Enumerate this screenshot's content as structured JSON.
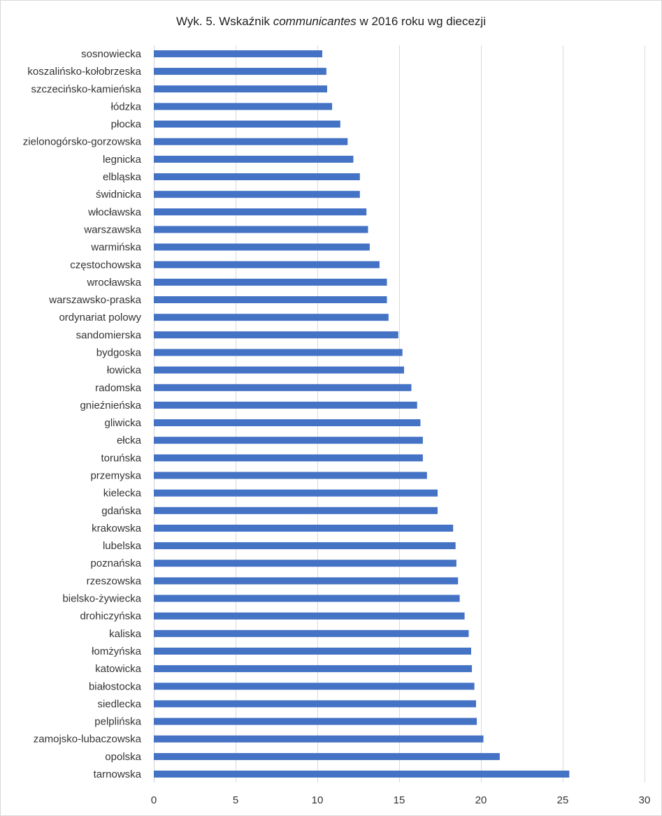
{
  "chart_data": {
    "type": "bar",
    "orientation": "horizontal",
    "title": {
      "prefix": "Wyk. 5. Wskaźnik ",
      "emphasis": "communicantes",
      "suffix": " w 2016 roku wg diecezji"
    },
    "xlabel": "",
    "ylabel": "",
    "xlim": [
      0,
      30
    ],
    "xticks": [
      0,
      5,
      10,
      15,
      20,
      25,
      30
    ],
    "grid": "vertical",
    "legend": "none",
    "bar_color": "#4472c4",
    "categories": [
      "sosnowiecka",
      "koszalińsko-kołobrzeska",
      "szczecińsko-kamieńska",
      "łódzka",
      "płocka",
      "zielonogórsko-gorzowska",
      "legnicka",
      "elbląska",
      "świdnicka",
      "włocławska",
      "warszawska",
      "warmińska",
      "częstochowska",
      "wrocławska",
      "warszawsko-praska",
      "ordynariat polowy",
      "sandomierska",
      "bydgoska",
      "łowicka",
      "radomska",
      "gnieźnieńska",
      "gliwicka",
      "ełcka",
      "toruńska",
      "przemyska",
      "kielecka",
      "gdańska",
      "krakowska",
      "lubelska",
      "poznańska",
      "rzeszowska",
      "bielsko-żywiecka",
      "drohiczyńska",
      "kaliska",
      "łomżyńska",
      "katowicka",
      "białostocka",
      "siedlecka",
      "pelplińska",
      "zamojsko-lubaczowska",
      "opolska",
      "tarnowska"
    ],
    "values": [
      10.3,
      10.55,
      10.6,
      10.9,
      11.4,
      11.85,
      12.2,
      12.6,
      12.6,
      13.0,
      13.1,
      13.2,
      13.8,
      14.25,
      14.25,
      14.35,
      14.95,
      15.2,
      15.3,
      15.75,
      16.1,
      16.3,
      16.45,
      16.45,
      16.7,
      17.35,
      17.35,
      18.3,
      18.45,
      18.5,
      18.6,
      18.7,
      19.0,
      19.25,
      19.4,
      19.45,
      19.6,
      19.7,
      19.75,
      20.15,
      21.15,
      25.4
    ]
  }
}
